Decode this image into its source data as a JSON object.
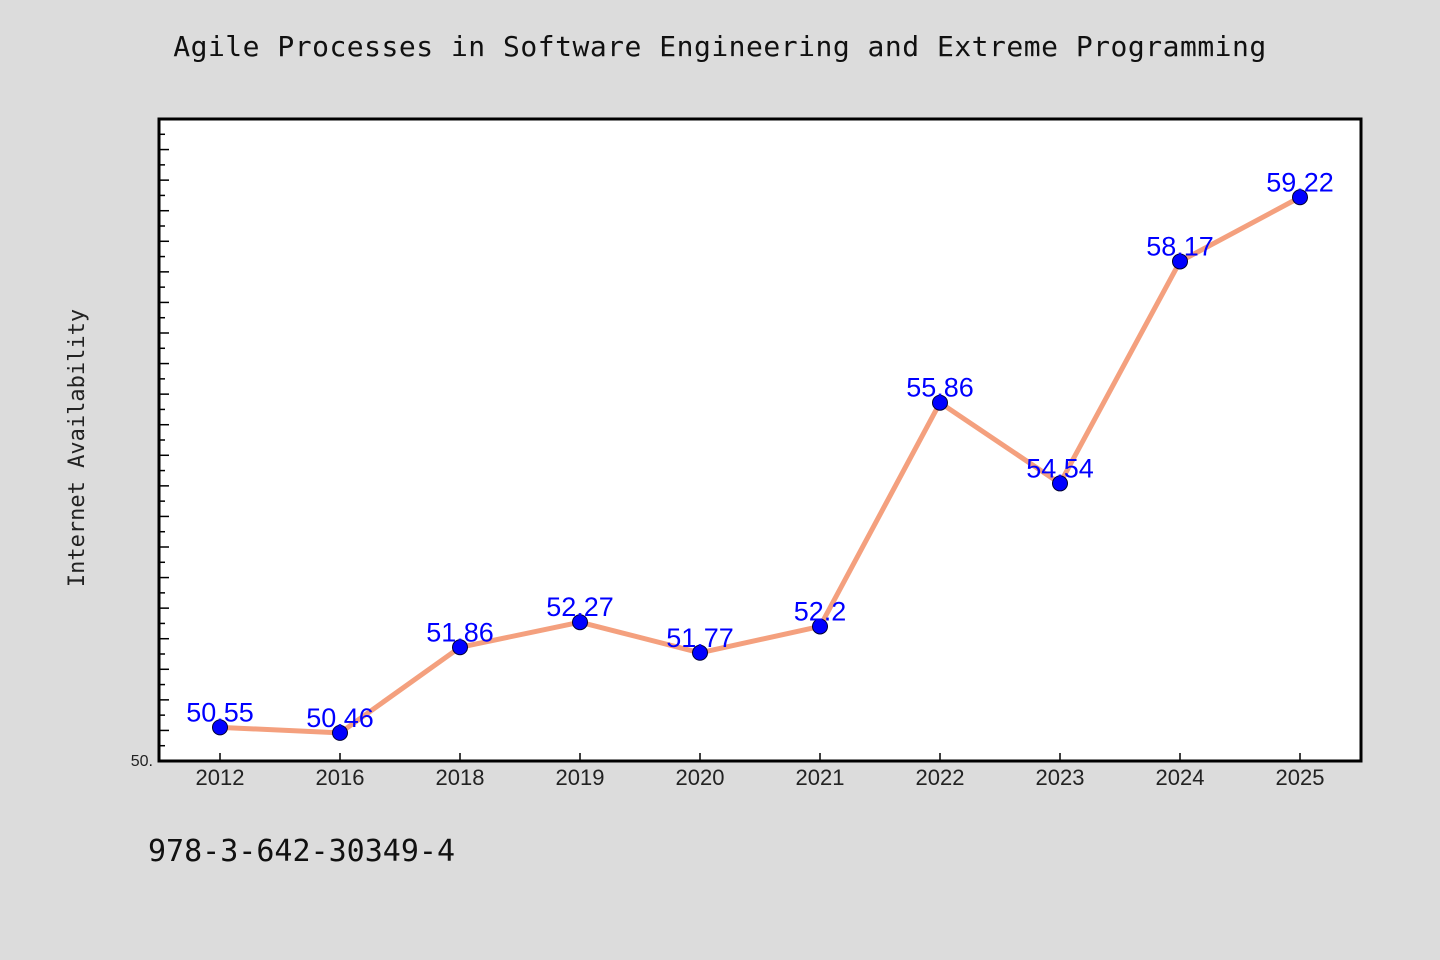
{
  "colors": {
    "background": "#dcdcdc",
    "plot_background": "#ffffff",
    "line": "#f4a07e",
    "marker": "#0000ff",
    "data_label": "#0000ff"
  },
  "footer": "978-3-642-30349-4",
  "chart_data": {
    "type": "line",
    "title": "Agile Processes in Software Engineering and Extreme Programming",
    "xlabel": "",
    "ylabel": "Internet Availability",
    "categories": [
      "2012",
      "2016",
      "2018",
      "2019",
      "2020",
      "2021",
      "2022",
      "2023",
      "2024",
      "2025"
    ],
    "series": [
      {
        "values": [
          50.55,
          50.46,
          51.86,
          52.27,
          51.77,
          52.2,
          55.86,
          54.54,
          58.17,
          59.22
        ],
        "labels": [
          "50.55",
          "50.46",
          "51.86",
          "52.27",
          "51.77",
          "52.2",
          "55.86",
          "54.54",
          "58.17",
          "59.22"
        ]
      }
    ],
    "ylim": [
      50,
      60.5
    ],
    "y_tick_label_min": "50.",
    "grid": false,
    "legend": "none"
  }
}
